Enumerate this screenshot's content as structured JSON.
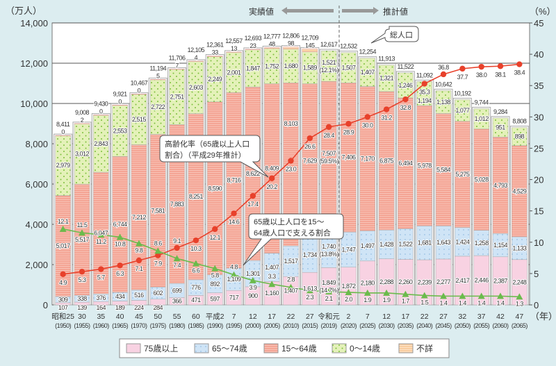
{
  "chart_data": {
    "type": "bar",
    "stacked": true,
    "left_axis_unit": "（万人）",
    "right_axis_unit": "（%）",
    "x_axis_unit": "（年）",
    "ylim": [
      0,
      14000
    ],
    "y_ticks": [
      "0",
      "2,000",
      "4,000",
      "6,000",
      "8,000",
      "10,000",
      "12,000",
      "14,000"
    ],
    "y2lim": [
      0,
      45
    ],
    "y2_ticks": [
      "0",
      "5",
      "10",
      "15",
      "20",
      "25",
      "30",
      "35",
      "40",
      "45"
    ],
    "grid": true,
    "legend_position": "bottom",
    "header": {
      "actual": "実績値",
      "projected": "推計値"
    },
    "categories_era": [
      "昭和25",
      "30",
      "35",
      "40",
      "45",
      "50",
      "55",
      "60",
      "平成2",
      "7",
      "12",
      "17",
      "22",
      "27",
      "令和元",
      "2",
      "7",
      "12",
      "17",
      "22",
      "27",
      "32",
      "37",
      "42",
      "47"
    ],
    "categories_year": [
      "(1950)",
      "(1955)",
      "(1960)",
      "(1965)",
      "(1970)",
      "(1975)",
      "(1980)",
      "(1985)",
      "(1990)",
      "(1995)",
      "(2000)",
      "(2005)",
      "(2010)",
      "(2015)",
      "(2019)",
      "(2020)",
      "(2025)",
      "(2030)",
      "(2035)",
      "(2040)",
      "(2045)",
      "(2050)",
      "(2055)",
      "(2060)",
      "(2065)"
    ],
    "totals": [
      8411,
      9008,
      9430,
      9921,
      10467,
      11194,
      11706,
      12105,
      12361,
      12557,
      12693,
      12777,
      12806,
      12709,
      12617,
      12532,
      12254,
      11913,
      11522,
      11092,
      10642,
      10192,
      9744,
      9284,
      8808
    ],
    "series": [
      {
        "name": "75歳以上",
        "color": "#f8d2e2",
        "values": [
          107,
          139,
          164,
          189,
          224,
          284,
          366,
          471,
          597,
          717,
          900,
          1160,
          1407,
          1613,
          1849,
          1872,
          2180,
          2288,
          2260,
          2239,
          2277,
          2417,
          2446,
          2387,
          2248
        ]
      },
      {
        "name": "65～74歳",
        "color": "#cfe4f6",
        "values": [
          309,
          338,
          376,
          434,
          516,
          602,
          699,
          776,
          892,
          1109,
          1301,
          1407,
          1517,
          1734,
          1740,
          1747,
          1497,
          1428,
          1522,
          1681,
          1643,
          1424,
          1258,
          1154,
          1133
        ]
      },
      {
        "name": "15～64歳",
        "color": "#f4a494",
        "values": [
          5017,
          5517,
          6047,
          6744,
          7212,
          7581,
          7883,
          8251,
          8590,
          8716,
          8622,
          8409,
          8103,
          7629,
          7507,
          7406,
          7170,
          6875,
          6494,
          5978,
          5584,
          5275,
          5028,
          4793,
          4529
        ]
      },
      {
        "name": "0～14歳",
        "color": "#e4f1b9",
        "values": [
          2979,
          3012,
          2843,
          2553,
          2515,
          2722,
          2751,
          2603,
          2249,
          2001,
          1847,
          1752,
          1680,
          1589,
          1521,
          1507,
          1407,
          1321,
          1246,
          1194,
          1138,
          1077,
          1012,
          951,
          898
        ]
      },
      {
        "name": "不詳",
        "color": "#f9cc9e",
        "values": [
          0,
          2,
          0,
          0,
          0,
          5,
          7,
          4,
          33,
          13,
          23,
          48,
          98,
          145,
          null,
          null,
          null,
          null,
          null,
          null,
          null,
          null,
          null,
          null,
          null
        ]
      }
    ],
    "share_2019": {
      "75歳以上": "(14.7%)",
      "65～74歳": "(13.8%)",
      "15～64歳": "(59.5%)",
      "0～14歳": "(12.1%)"
    },
    "lines": [
      {
        "name": "高齢化率（65歳以上人口割合）（平成29年推計）",
        "color": "#e8412b",
        "axis": "right",
        "values": [
          4.9,
          5.3,
          5.7,
          6.3,
          7.1,
          7.9,
          9.1,
          10.3,
          12.1,
          14.6,
          17.4,
          20.2,
          23.0,
          26.6,
          28.4,
          28.9,
          30.0,
          31.2,
          32.8,
          35.3,
          36.8,
          37.7,
          38.0,
          38.1,
          38.4
        ]
      },
      {
        "name": "65歳以上人口を15～64歳人口で支える割合",
        "color": "#6bbb4c",
        "axis": "right",
        "values": [
          12.1,
          11.5,
          11.2,
          10.8,
          9.8,
          8.6,
          7.4,
          6.6,
          5.8,
          4.8,
          3.9,
          3.3,
          2.8,
          2.3,
          2.1,
          2.0,
          1.9,
          1.9,
          1.7,
          1.5,
          1.4,
          1.4,
          1.4,
          1.4,
          1.3
        ]
      }
    ],
    "callouts": {
      "aging_line1": "高齢化率（65歳以上人口",
      "aging_line2": "割合）（平成29年推計）",
      "support_line1": "65歳以上人口を15～",
      "support_line2": "64歳人口で支える割合",
      "total": "総人口"
    }
  }
}
